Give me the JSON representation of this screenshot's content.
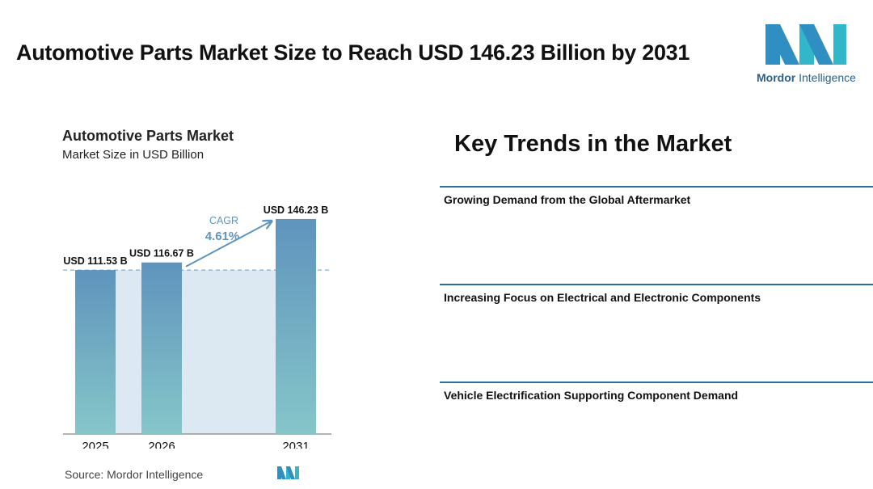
{
  "headline": "Automotive Parts Market Size to Reach USD 146.23 Billion by 2031",
  "logo": {
    "brand": "Mordor",
    "brand_suffix": "Intelligence",
    "colors": [
      "#2f8fc2",
      "#31b7c9"
    ]
  },
  "chart_data": {
    "type": "bar",
    "title": "Automotive Parts Market",
    "subtitle": "Market Size in USD Billion",
    "categories": [
      "2025",
      "2026",
      "2031"
    ],
    "values": [
      111.53,
      116.67,
      146.23
    ],
    "data_labels": [
      "USD 111.53 B",
      "USD 116.67 B",
      "USD 146.23 B"
    ],
    "cagr_label": "CAGR",
    "cagr_value": "4.61%",
    "ylim": [
      0,
      155
    ],
    "grid": false,
    "bar_color_top": "#5f94bd",
    "bar_color_bottom": "#86c6c9",
    "band_color": "#dde9f2",
    "arrow_color": "#5f94bd"
  },
  "source": "Source: Mordor Intelligence",
  "trends": {
    "title": "Key Trends in the Market",
    "items": [
      "Growing Demand from the Global Aftermarket",
      "Increasing Focus on Electrical and Electronic Components",
      "Vehicle Electrification Supporting Component Demand"
    ]
  }
}
